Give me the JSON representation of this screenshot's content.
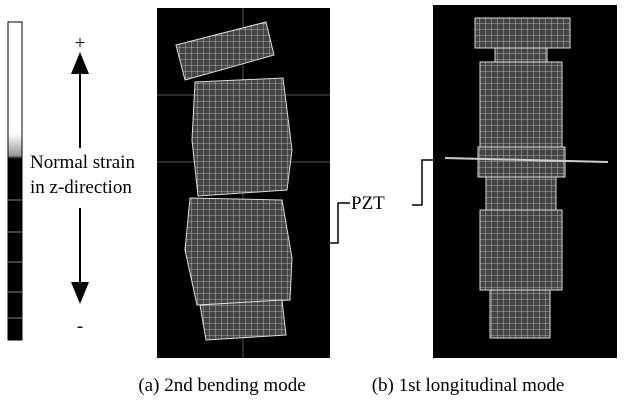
{
  "scale": {
    "plus": "+",
    "minus": "-",
    "label_line1": "Normal strain",
    "label_line2": "in z-direction"
  },
  "annotation": "PZT",
  "captions": [
    "(a) 2nd bending mode",
    "(b) 1st longitudinal mode"
  ]
}
